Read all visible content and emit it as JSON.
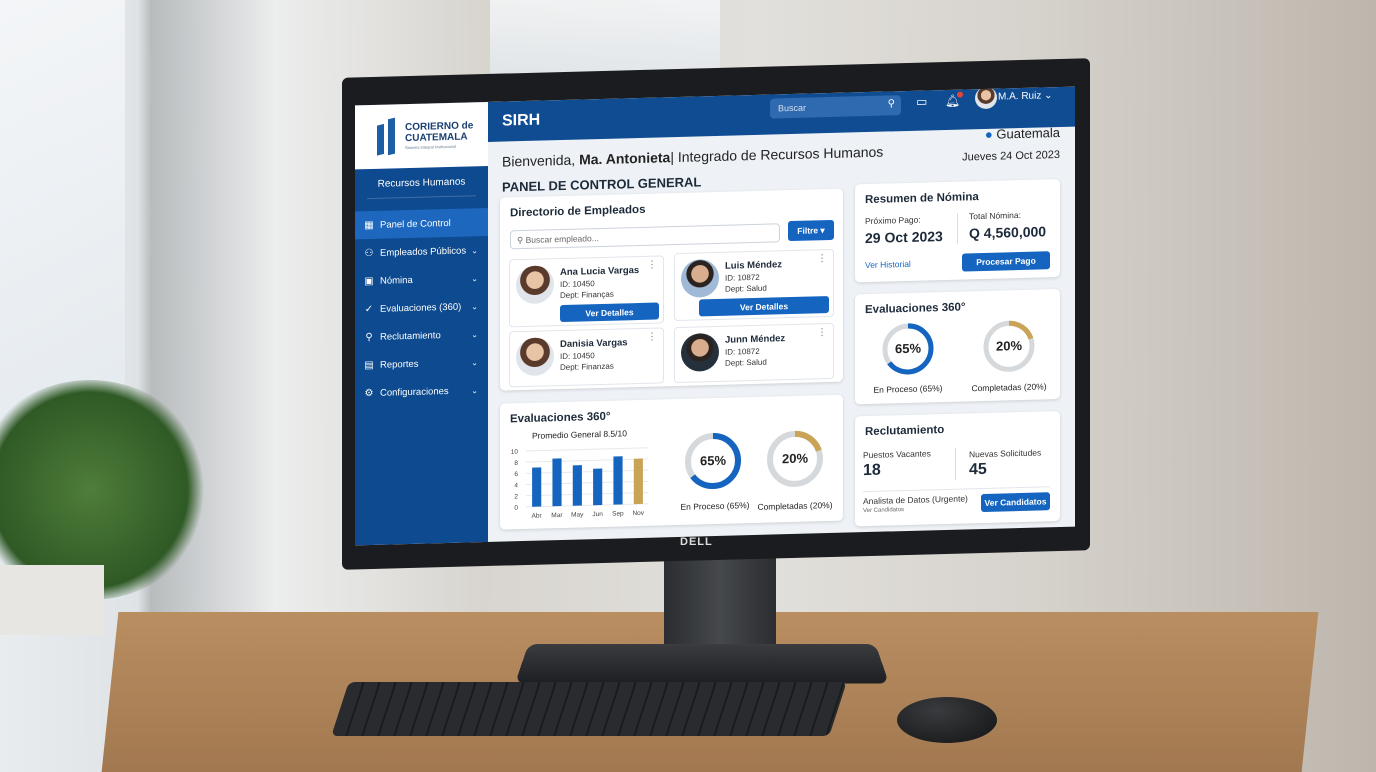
{
  "sidebar": {
    "logo_line1": "CORIERNO de",
    "logo_line2": "CUATEMALA",
    "logo_tagline": "Sistema Integral Institucional",
    "section": "Recursos Humanos",
    "items": [
      {
        "label": "Panel de Control",
        "icon": "grid-icon",
        "active": true
      },
      {
        "label": "Empleados Públicos",
        "icon": "users-icon"
      },
      {
        "label": "Nómina",
        "icon": "money-icon"
      },
      {
        "label": "Evaluaciones (360)",
        "icon": "check-circle-icon"
      },
      {
        "label": "Reclutamiento",
        "icon": "search-person-icon"
      },
      {
        "label": "Reportes",
        "icon": "document-icon"
      },
      {
        "label": "Configuraciones",
        "icon": "gear-icon"
      }
    ]
  },
  "header": {
    "app": "SIRH",
    "search_placeholder": "Buscar",
    "user": "M.A. Ruiz",
    "notification_color": "#e0453a"
  },
  "welcome": {
    "prefix": "Bienvenida, ",
    "name": "Ma. Antonieta",
    "suffix": "| Integrado de Recursos Humanos",
    "title": "PANEL DE CONTROL GENERAL",
    "location": "Guatemala",
    "date": "Jueves 24 Oct 2023"
  },
  "directory": {
    "title": "Directorio de Empleados",
    "search_placeholder": "Buscar empleado...",
    "filter": "Filtre",
    "employees": [
      {
        "name": "Ana Lucia Vargas",
        "id": "ID: 10450",
        "dept": "Dept: Finanças",
        "action": "Ver Detalles"
      },
      {
        "name": "Luis Méndez",
        "id": "ID: 10872",
        "dept": "Dept: Salud",
        "action": "Ver Detalles"
      },
      {
        "name": "Danisia Vargas",
        "id": "ID: 10450",
        "dept": "Dept: Finanzas"
      },
      {
        "name": "Junn Méndez",
        "id": "ID: 10872",
        "dept": "Dept: Salud"
      }
    ]
  },
  "evaluations": {
    "title": "Evaluaciones 360°",
    "chart_title": "Promedio General 8.5/10",
    "in_process": "65%",
    "in_process_label": "En Proceso (65%)",
    "completed": "20%",
    "completed_label": "Completadas (20%)",
    "in_process_value": 65,
    "completed_value": 20,
    "colors": {
      "blue": "#1565c0",
      "gold": "#c9a456",
      "track": "#d6d9dc"
    }
  },
  "chart_data": {
    "type": "bar",
    "title": "Promedio General 8.5/10",
    "categories": [
      "Abr",
      "Mar",
      "May",
      "Jun",
      "Sep",
      "Nov"
    ],
    "values": [
      7,
      8.5,
      7.2,
      6.5,
      8.6,
      8.1
    ],
    "ylim": [
      0,
      10
    ],
    "yticks": [
      "0",
      "2",
      "4",
      "6",
      "8",
      "10"
    ],
    "grid": true,
    "colors": [
      "#1565c0",
      "#1565c0",
      "#1565c0",
      "#1565c0",
      "#1565c0",
      "#c9a456"
    ]
  },
  "payroll": {
    "title": "Resumen de Nómina",
    "next_label": "Próximo Pago:",
    "next_value": "29 Oct 2023",
    "total_label": "Total Nómina:",
    "total_value": "Q 4,560,000",
    "history": "Ver Historial",
    "process": "Procesar Pago"
  },
  "recruit": {
    "title": "Reclutamiento",
    "vacancies_label": "Puestos Vacantes",
    "vacancies": "18",
    "apps_label": "Nuevas Solicitudes",
    "apps": "45",
    "urgent": "Analista de Datos (Urgente)",
    "urgent_sub": "Ver Candidatos",
    "cta": "Ver Candidatos"
  },
  "monitor": {
    "brand": "DELL"
  }
}
